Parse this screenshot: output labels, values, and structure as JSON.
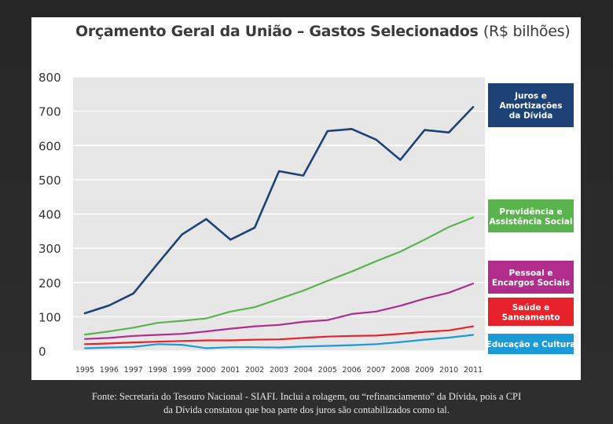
{
  "title": {
    "main": "Orçamento Geral da União – Gastos Selecionados",
    "unit": "(R$ bilhões)"
  },
  "caption": {
    "line1": "Fonte: Secretaria do Tesouro Nacional - SIAFI. Inclui a rolagem, ou “refinanciamento” da Dívida, pois a CPI",
    "line2": "da Dívida constatou que boa parte dos juros são contabilizados como tal."
  },
  "chart_data": {
    "type": "line",
    "title": "Orçamento Geral da União – Gastos Selecionados (R$ bilhões)",
    "xlabel": "",
    "ylabel": "",
    "ylim": [
      0,
      800
    ],
    "yticks": [
      0,
      100,
      200,
      300,
      400,
      500,
      600,
      700,
      800
    ],
    "grid": true,
    "categories": [
      "1995",
      "1996",
      "1997",
      "1998",
      "1999",
      "2000",
      "2001",
      "2002",
      "2003",
      "2004",
      "2005",
      "2006",
      "2007",
      "2008",
      "2009",
      "2010",
      "2011"
    ],
    "series": [
      {
        "name": "Juros e Amortizações da Dívida",
        "label_lines": [
          "Juros e",
          "Amortizações",
          "da Dívida"
        ],
        "color": "#1d4275",
        "values": [
          110,
          133,
          168,
          255,
          340,
          385,
          325,
          360,
          525,
          512,
          642,
          648,
          617,
          558,
          645,
          638,
          712
        ]
      },
      {
        "name": "Previdência e Assistência Social",
        "label_lines": [
          "Previdência e",
          "Assistência Social"
        ],
        "color": "#5ab44e",
        "values": [
          48,
          57,
          68,
          82,
          88,
          95,
          115,
          128,
          152,
          176,
          205,
          232,
          262,
          290,
          325,
          362,
          390
        ]
      },
      {
        "name": "Pessoal e Encargos Sociais",
        "label_lines": [
          "Pessoal e",
          "Encargos Sociais"
        ],
        "color": "#b02d8c",
        "values": [
          35,
          38,
          44,
          47,
          50,
          57,
          65,
          72,
          76,
          85,
          90,
          108,
          115,
          132,
          153,
          170,
          197
        ]
      },
      {
        "name": "Saúde e Saneamento",
        "label_lines": [
          "Saúde e",
          "Saneamento"
        ],
        "color": "#e8222a",
        "values": [
          20,
          22,
          25,
          27,
          29,
          31,
          31,
          33,
          34,
          38,
          42,
          44,
          45,
          50,
          56,
          60,
          72
        ]
      },
      {
        "name": "Educação e Cultura",
        "label_lines": [
          "Educação e Cultura"
        ],
        "color": "#1a9bd7",
        "values": [
          8,
          10,
          12,
          20,
          18,
          8,
          11,
          11,
          10,
          13,
          15,
          17,
          20,
          26,
          33,
          39,
          47
        ]
      }
    ]
  }
}
